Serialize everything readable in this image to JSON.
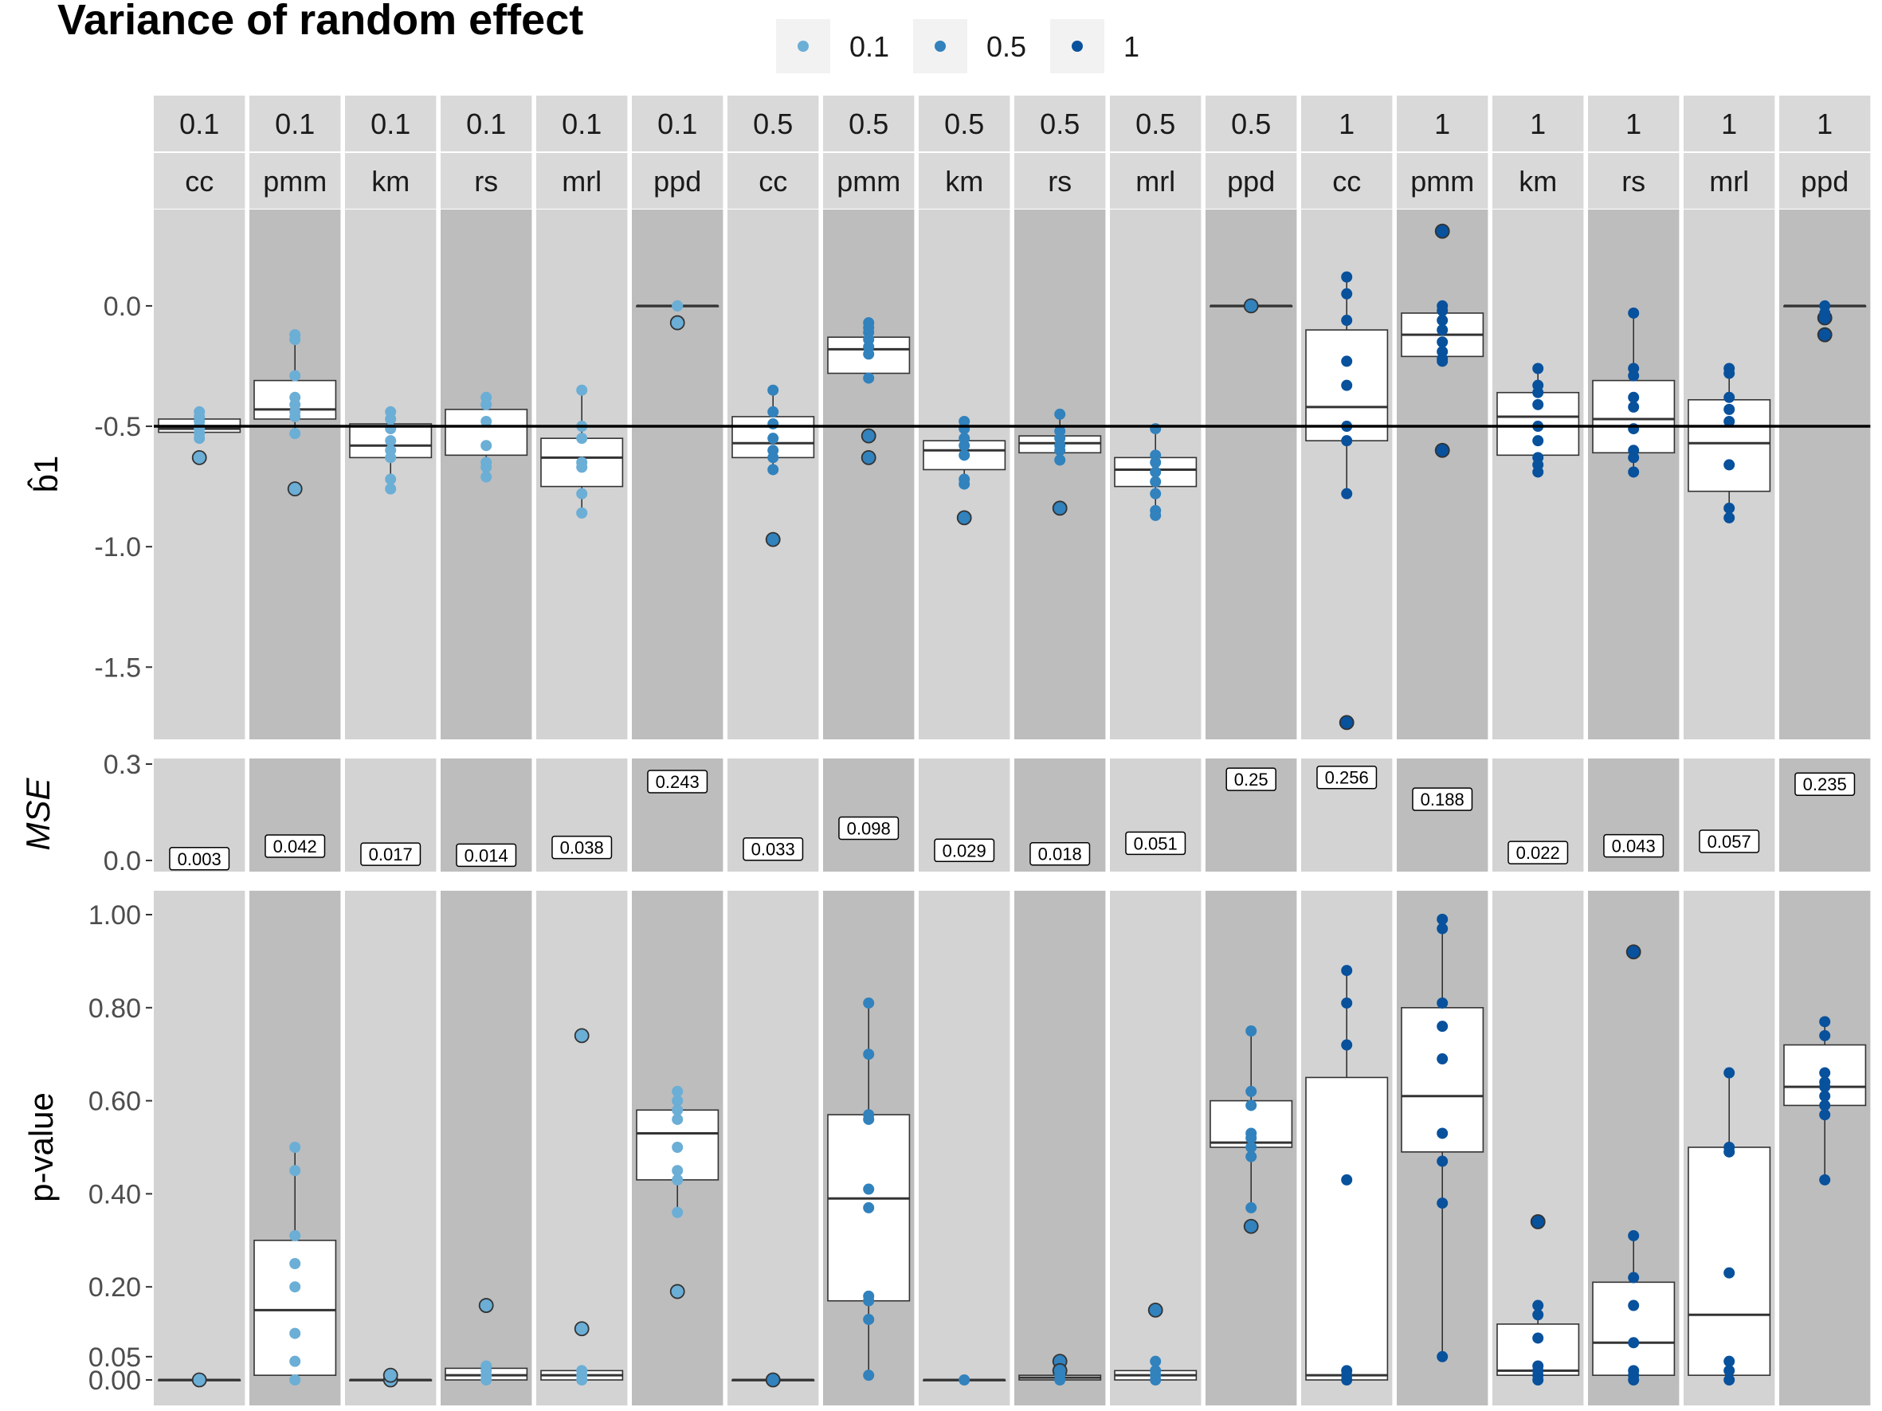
{
  "chart_data": {
    "type": "box",
    "title": "Variance of random effect",
    "legend": {
      "position": "top",
      "entries": [
        "0.1",
        "0.5",
        "1"
      ],
      "colors": [
        "#6BAED6",
        "#3182BD",
        "#08519C"
      ]
    },
    "facet_vars": [
      "0.1",
      "0.1",
      "0.1",
      "0.1",
      "0.1",
      "0.1",
      "0.5",
      "0.5",
      "0.5",
      "0.5",
      "0.5",
      "0.5",
      "1",
      "1",
      "1",
      "1",
      "1",
      "1"
    ],
    "facet_methods": [
      "cc",
      "pmm",
      "km",
      "rs",
      "mrl",
      "ppd",
      "cc",
      "pmm",
      "km",
      "rs",
      "mrl",
      "ppd",
      "cc",
      "pmm",
      "km",
      "rs",
      "mrl",
      "ppd"
    ],
    "colors": {
      "panel_light": "#D3D3D3",
      "panel_dark": "#BDBDBD",
      "strip": "#D9D9D9",
      "box_fill": "#FFFFFF",
      "box_line": "#333333",
      "reference_line": "#000000"
    },
    "b1": {
      "ylabel": "b̂1",
      "ylim": [
        -1.8,
        0.4
      ],
      "ticks": [
        "0.0",
        "-0.5",
        "-1.0",
        "-1.5"
      ],
      "tick_values": [
        0.0,
        -0.5,
        -1.0,
        -1.5
      ],
      "reference": -0.5,
      "boxes": [
        {
          "q1": -0.525,
          "med": -0.51,
          "q3": -0.47,
          "lo": -0.525,
          "hi": -0.47,
          "points": [
            -0.44,
            -0.46,
            -0.48,
            -0.5,
            -0.51,
            -0.53,
            -0.55
          ],
          "outliers": [
            -0.63
          ]
        },
        {
          "q1": -0.47,
          "med": -0.43,
          "q3": -0.31,
          "lo": -0.53,
          "hi": -0.13,
          "points": [
            -0.12,
            -0.14,
            -0.29,
            -0.38,
            -0.41,
            -0.44,
            -0.46,
            -0.53
          ],
          "outliers": [
            -0.76
          ]
        },
        {
          "q1": -0.63,
          "med": -0.58,
          "q3": -0.49,
          "lo": -0.76,
          "hi": -0.44,
          "points": [
            -0.44,
            -0.47,
            -0.51,
            -0.56,
            -0.6,
            -0.63,
            -0.72,
            -0.76
          ],
          "outliers": []
        },
        {
          "q1": -0.62,
          "med": -0.5,
          "q3": -0.43,
          "lo": -0.71,
          "hi": -0.38,
          "points": [
            -0.38,
            -0.41,
            -0.48,
            -0.58,
            -0.65,
            -0.67,
            -0.71
          ],
          "outliers": []
        },
        {
          "q1": -0.75,
          "med": -0.63,
          "q3": -0.55,
          "lo": -0.86,
          "hi": -0.35,
          "points": [
            -0.35,
            -0.5,
            -0.55,
            -0.65,
            -0.67,
            -0.78,
            -0.86
          ],
          "outliers": []
        },
        {
          "q1": 0.0,
          "med": 0.0,
          "q3": 0.0,
          "lo": 0.0,
          "hi": 0.0,
          "points": [
            0.0,
            0.0
          ],
          "outliers": [
            -0.07
          ]
        },
        {
          "q1": -0.63,
          "med": -0.57,
          "q3": -0.46,
          "lo": -0.68,
          "hi": -0.35,
          "points": [
            -0.35,
            -0.44,
            -0.49,
            -0.55,
            -0.6,
            -0.63,
            -0.68
          ],
          "outliers": [
            -0.97
          ]
        },
        {
          "q1": -0.28,
          "med": -0.18,
          "q3": -0.13,
          "lo": -0.31,
          "hi": -0.07,
          "points": [
            -0.07,
            -0.09,
            -0.11,
            -0.14,
            -0.17,
            -0.2,
            -0.3
          ],
          "outliers": [
            -0.54,
            -0.63
          ]
        },
        {
          "q1": -0.68,
          "med": -0.6,
          "q3": -0.56,
          "lo": -0.74,
          "hi": -0.48,
          "points": [
            -0.48,
            -0.51,
            -0.55,
            -0.58,
            -0.62,
            -0.72,
            -0.74
          ],
          "outliers": [
            -0.88
          ]
        },
        {
          "q1": -0.61,
          "med": -0.57,
          "q3": -0.54,
          "lo": -0.64,
          "hi": -0.45,
          "points": [
            -0.45,
            -0.52,
            -0.55,
            -0.58,
            -0.6,
            -0.64
          ],
          "outliers": [
            -0.84
          ]
        },
        {
          "q1": -0.75,
          "med": -0.68,
          "q3": -0.63,
          "lo": -0.87,
          "hi": -0.51,
          "points": [
            -0.51,
            -0.62,
            -0.65,
            -0.69,
            -0.73,
            -0.78,
            -0.85,
            -0.87
          ],
          "outliers": []
        },
        {
          "q1": 0.0,
          "med": 0.0,
          "q3": 0.0,
          "lo": 0.0,
          "hi": 0.0,
          "points": [],
          "outliers": [
            0.0
          ]
        },
        {
          "q1": -0.56,
          "med": -0.42,
          "q3": -0.1,
          "lo": -0.78,
          "hi": 0.12,
          "points": [
            0.12,
            0.05,
            -0.06,
            -0.23,
            -0.33,
            -0.5,
            -0.56,
            -0.78
          ],
          "outliers": [
            -1.73
          ]
        },
        {
          "q1": -0.21,
          "med": -0.12,
          "q3": -0.03,
          "lo": -0.23,
          "hi": 0.0,
          "points": [
            0.0,
            -0.02,
            -0.06,
            -0.1,
            -0.15,
            -0.19,
            -0.22,
            -0.23
          ],
          "outliers": [
            0.31,
            -0.6
          ]
        },
        {
          "q1": -0.62,
          "med": -0.46,
          "q3": -0.36,
          "lo": -0.69,
          "hi": -0.26,
          "points": [
            -0.26,
            -0.33,
            -0.36,
            -0.41,
            -0.5,
            -0.56,
            -0.63,
            -0.66,
            -0.69
          ],
          "outliers": []
        },
        {
          "q1": -0.61,
          "med": -0.47,
          "q3": -0.31,
          "lo": -0.69,
          "hi": -0.03,
          "points": [
            -0.03,
            -0.26,
            -0.29,
            -0.38,
            -0.42,
            -0.51,
            -0.6,
            -0.63,
            -0.69
          ],
          "outliers": []
        },
        {
          "q1": -0.77,
          "med": -0.57,
          "q3": -0.39,
          "lo": -0.88,
          "hi": -0.26,
          "points": [
            -0.26,
            -0.28,
            -0.38,
            -0.43,
            -0.48,
            -0.66,
            -0.84,
            -0.88
          ],
          "outliers": []
        },
        {
          "q1": 0.0,
          "med": 0.0,
          "q3": 0.0,
          "lo": 0.0,
          "hi": 0.0,
          "points": [
            0.0,
            -0.03,
            -0.05
          ],
          "outliers": [
            -0.05,
            -0.12
          ]
        }
      ]
    },
    "mse": {
      "ylabel": "MSE",
      "ylim": [
        0.0,
        0.3
      ],
      "ticks": [
        "0.3",
        "0.0"
      ],
      "tick_values": [
        0.3,
        0.0
      ],
      "values": [
        0.003,
        0.042,
        0.017,
        0.014,
        0.038,
        0.243,
        0.033,
        0.098,
        0.029,
        0.018,
        0.051,
        0.25,
        0.256,
        0.188,
        0.022,
        0.043,
        0.057,
        0.235
      ],
      "labels": [
        "0.003",
        "0.042",
        "0.017",
        "0.014",
        "0.038",
        "0.243",
        "0.033",
        "0.098",
        "0.029",
        "0.018",
        "0.051",
        "0.25",
        "0.256",
        "0.188",
        "0.022",
        "0.043",
        "0.057",
        "0.235"
      ]
    },
    "pvalue": {
      "ylabel": "p-value",
      "ylim": [
        0.0,
        1.0
      ],
      "ticks": [
        "1.00",
        "0.80",
        "0.60",
        "0.40",
        "0.20",
        "0.05",
        "0.00"
      ],
      "tick_values": [
        1.0,
        0.8,
        0.6,
        0.4,
        0.2,
        0.05,
        0.0
      ],
      "boxes": [
        {
          "q1": 0.0,
          "med": 0.0,
          "q3": 0.0,
          "lo": 0.0,
          "hi": 0.0,
          "points": [],
          "outliers": [
            0.0
          ]
        },
        {
          "q1": 0.01,
          "med": 0.15,
          "q3": 0.3,
          "lo": 0.0,
          "hi": 0.5,
          "points": [
            0.5,
            0.45,
            0.31,
            0.25,
            0.2,
            0.1,
            0.04,
            0.0
          ],
          "outliers": []
        },
        {
          "q1": 0.0,
          "med": 0.0,
          "q3": 0.0,
          "lo": 0.0,
          "hi": 0.0,
          "points": [],
          "outliers": [
            0.0,
            0.01
          ]
        },
        {
          "q1": 0.0,
          "med": 0.01,
          "q3": 0.025,
          "lo": 0.0,
          "hi": 0.03,
          "points": [
            0.03,
            0.02,
            0.01,
            0.0
          ],
          "outliers": [
            0.16
          ]
        },
        {
          "q1": 0.0,
          "med": 0.01,
          "q3": 0.02,
          "lo": 0.0,
          "hi": 0.02,
          "points": [
            0.02,
            0.01,
            0.0
          ],
          "outliers": [
            0.74,
            0.11
          ]
        },
        {
          "q1": 0.43,
          "med": 0.53,
          "q3": 0.58,
          "lo": 0.36,
          "hi": 0.62,
          "points": [
            0.62,
            0.6,
            0.58,
            0.56,
            0.5,
            0.45,
            0.43,
            0.36
          ],
          "outliers": [
            0.19
          ]
        },
        {
          "q1": 0.0,
          "med": 0.0,
          "q3": 0.0,
          "lo": 0.0,
          "hi": 0.0,
          "points": [],
          "outliers": [
            0.0
          ]
        },
        {
          "q1": 0.17,
          "med": 0.39,
          "q3": 0.57,
          "lo": 0.01,
          "hi": 0.81,
          "points": [
            0.81,
            0.7,
            0.57,
            0.56,
            0.41,
            0.37,
            0.18,
            0.17,
            0.13,
            0.01
          ],
          "outliers": []
        },
        {
          "q1": 0.0,
          "med": 0.0,
          "q3": 0.0,
          "lo": 0.0,
          "hi": 0.0,
          "points": [
            0.0
          ],
          "outliers": []
        },
        {
          "q1": 0.0,
          "med": 0.005,
          "q3": 0.01,
          "lo": 0.0,
          "hi": 0.01,
          "points": [
            0.01,
            0.0
          ],
          "outliers": [
            0.04,
            0.02
          ]
        },
        {
          "q1": 0.0,
          "med": 0.01,
          "q3": 0.02,
          "lo": 0.0,
          "hi": 0.03,
          "points": [
            0.04,
            0.02,
            0.01,
            0.0
          ],
          "outliers": [
            0.15
          ]
        },
        {
          "q1": 0.5,
          "med": 0.51,
          "q3": 0.6,
          "lo": 0.37,
          "hi": 0.75,
          "points": [
            0.75,
            0.62,
            0.59,
            0.53,
            0.52,
            0.5,
            0.48,
            0.37
          ],
          "outliers": [
            0.33
          ]
        },
        {
          "q1": 0.0,
          "med": 0.01,
          "q3": 0.65,
          "lo": 0.0,
          "hi": 0.88,
          "points": [
            0.88,
            0.81,
            0.72,
            0.43,
            0.02,
            0.01,
            0.0
          ],
          "outliers": []
        },
        {
          "q1": 0.49,
          "med": 0.61,
          "q3": 0.8,
          "lo": 0.05,
          "hi": 0.99,
          "points": [
            0.99,
            0.97,
            0.81,
            0.76,
            0.69,
            0.53,
            0.47,
            0.38,
            0.05
          ],
          "outliers": []
        },
        {
          "q1": 0.01,
          "med": 0.02,
          "q3": 0.12,
          "lo": 0.0,
          "hi": 0.16,
          "points": [
            0.16,
            0.14,
            0.09,
            0.03,
            0.02,
            0.01,
            0.0
          ],
          "outliers": [
            0.34
          ]
        },
        {
          "q1": 0.01,
          "med": 0.08,
          "q3": 0.21,
          "lo": 0.0,
          "hi": 0.31,
          "points": [
            0.31,
            0.22,
            0.16,
            0.08,
            0.02,
            0.01,
            0.0
          ],
          "outliers": [
            0.92
          ]
        },
        {
          "q1": 0.01,
          "med": 0.14,
          "q3": 0.5,
          "lo": 0.0,
          "hi": 0.66,
          "points": [
            0.66,
            0.5,
            0.49,
            0.23,
            0.04,
            0.02,
            0.0
          ],
          "outliers": []
        },
        {
          "q1": 0.59,
          "med": 0.63,
          "q3": 0.72,
          "lo": 0.43,
          "hi": 0.77,
          "points": [
            0.77,
            0.74,
            0.66,
            0.64,
            0.63,
            0.61,
            0.59,
            0.57,
            0.43
          ],
          "outliers": []
        }
      ]
    }
  }
}
